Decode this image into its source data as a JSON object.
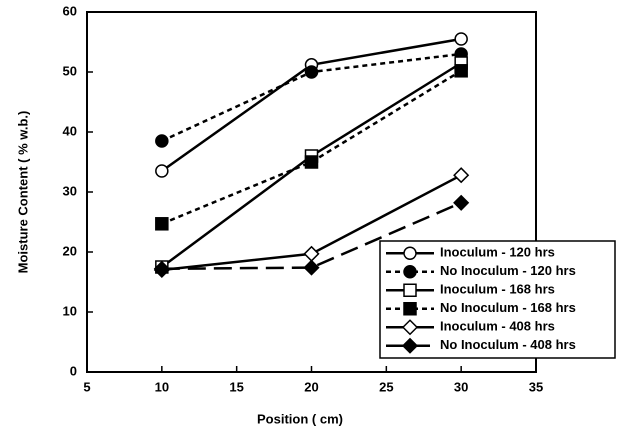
{
  "chart_data": {
    "type": "line",
    "x_label": "Position ( cm)",
    "y_label": "Moisture Content ( % w.b.)",
    "x": [
      10,
      20,
      30
    ],
    "xlim": [
      5,
      35
    ],
    "xticks": [
      5,
      10,
      15,
      20,
      25,
      30,
      35
    ],
    "ylim": [
      0,
      60
    ],
    "yticks": [
      0,
      10,
      20,
      30,
      40,
      50,
      60
    ],
    "legend": "lower right",
    "series": [
      {
        "name": "Inoculum - 120 hrs",
        "color": "#000000",
        "dash": "solid",
        "marker": "circle",
        "filled": false,
        "values": [
          33.5,
          51.2,
          55.5
        ]
      },
      {
        "name": "No Inoculum - 120 hrs",
        "color": "#000000",
        "dash": "dotted",
        "marker": "circle",
        "filled": true,
        "values": [
          38.5,
          50,
          53
        ]
      },
      {
        "name": "Inoculum - 168 hrs",
        "color": "#000000",
        "dash": "solid",
        "marker": "square",
        "filled": false,
        "values": [
          17.5,
          36,
          51.5
        ]
      },
      {
        "name": "No Inoculum - 168 hrs",
        "color": "#000000",
        "dash": "dotted",
        "marker": "square",
        "filled": true,
        "values": [
          24.7,
          35,
          50.2
        ]
      },
      {
        "name": "Inoculum - 408 hrs",
        "color": "#000000",
        "dash": "solid",
        "marker": "diamond",
        "filled": false,
        "values": [
          17,
          19.7,
          32.8
        ]
      },
      {
        "name": "No Inoculum - 408 hrs",
        "color": "#000000",
        "dash": "dashed",
        "marker": "diamond",
        "filled": true,
        "values": [
          17.2,
          17.4,
          28.2
        ]
      }
    ]
  }
}
